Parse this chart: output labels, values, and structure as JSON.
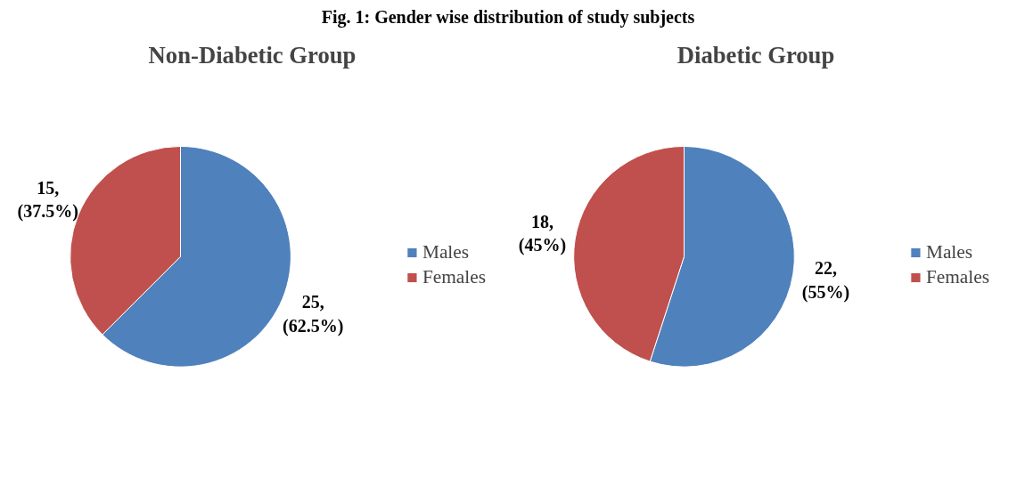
{
  "chart_data": [
    {
      "type": "pie",
      "title": "Non-Diabetic Group",
      "annotations": [
        "Fig. 1: Gender wise distribution of study subjects"
      ],
      "categories": [
        "Males",
        "Females"
      ],
      "values": [
        25,
        15
      ],
      "colors": [
        "#4f81bd",
        "#c0504d"
      ],
      "value_labels": [
        "25,\n(62.5%)",
        "15,\n(37.5%)"
      ],
      "legend": "right"
    },
    {
      "type": "pie",
      "title": "Diabetic Group",
      "categories": [
        "Males",
        "Females"
      ],
      "values": [
        22,
        18
      ],
      "colors": [
        "#4f81bd",
        "#c0504d"
      ],
      "value_labels": [
        "22,\n(55%)",
        "18,\n(45%)"
      ],
      "legend": "right"
    }
  ]
}
